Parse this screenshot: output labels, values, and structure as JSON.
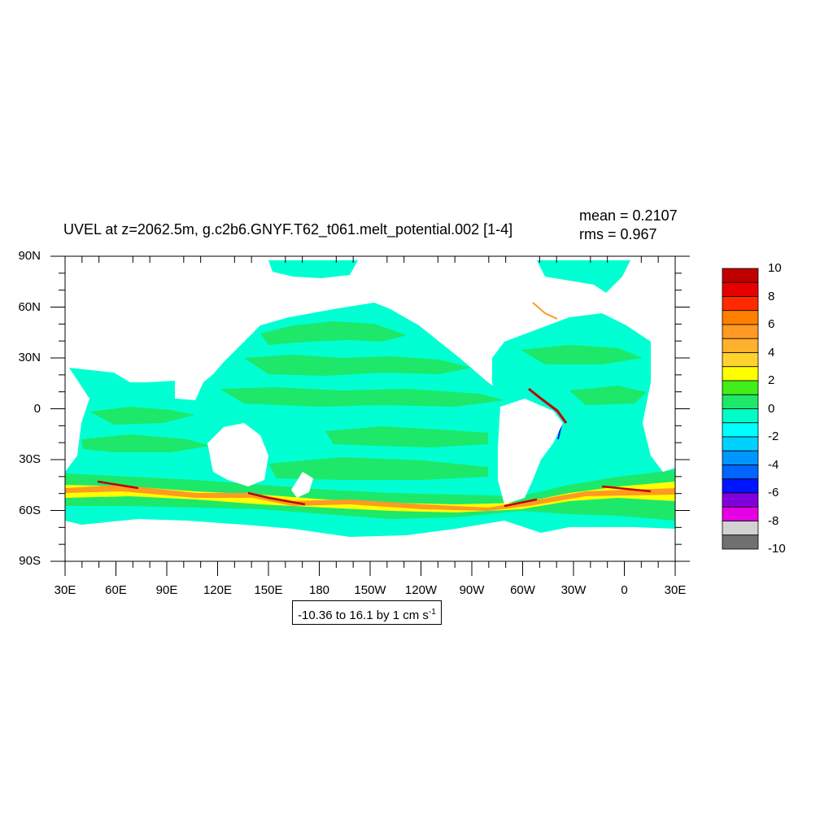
{
  "plot": {
    "title": "UVEL at z=2062.5m, g.c2b6.GNYF.T62_t061.melt_potential.002 [1-4]",
    "mean_text": "mean = 0.2107",
    "rms_text": "rms = 0.967",
    "range_text": "-10.36 to 16.1 by 1 cm s",
    "range_unit_exp": "-1",
    "variable": "UVEL",
    "depth": "z=2062.5m",
    "units": "cm s-1"
  },
  "axes": {
    "lat_labels": [
      "90N",
      "60N",
      "30N",
      "0",
      "30S",
      "60S",
      "90S"
    ],
    "lon_labels": [
      "30E",
      "60E",
      "90E",
      "120E",
      "150E",
      "180",
      "150W",
      "120W",
      "90W",
      "60W",
      "30W",
      "0",
      "30E"
    ],
    "lat_range": [
      -90,
      90
    ],
    "lon_range": [
      30,
      390
    ]
  },
  "colorbar": {
    "labels": [
      "10",
      "8",
      "6",
      "4",
      "2",
      "0",
      "-2",
      "-4",
      "-6",
      "-8",
      "-10"
    ],
    "colors": [
      "#c00000",
      "#e60000",
      "#ff2a00",
      "#ff7f00",
      "#ff9a22",
      "#ffb02d",
      "#ffd22d",
      "#ffff00",
      "#42ee1a",
      "#1ee86a",
      "#00ffc8",
      "#00ffff",
      "#00d2ff",
      "#0096ff",
      "#0064ff",
      "#0014ff",
      "#8200dc",
      "#e600e6",
      "#d2d2d2",
      "#707070"
    ]
  },
  "map_colors": {
    "ocean_cyan": "#00ffd2",
    "ocean_green": "#1ee86a",
    "jet_yellow": "#ffff00",
    "jet_orange": "#ff9a22",
    "jet_red": "#c00000",
    "land": "#ffffff"
  }
}
